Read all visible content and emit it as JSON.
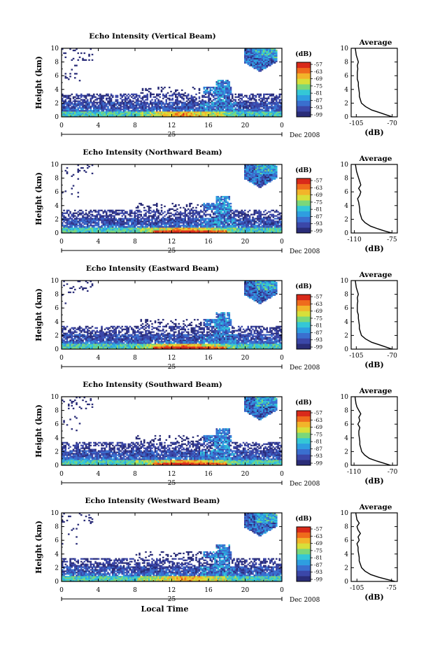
{
  "chart_data": [
    {
      "type": "heatmap",
      "title": "Echo Intensity (Vertical Beam)",
      "ylabel": "Height (km)",
      "x_ticks": [
        "0",
        "4",
        "8",
        "12",
        "16",
        "20",
        "0"
      ],
      "xlim": [
        0,
        24
      ],
      "y_ticks": [
        "0",
        "2",
        "4",
        "6",
        "8",
        "10"
      ],
      "ylim": [
        0,
        10
      ],
      "day_label": "25",
      "date_label": "Dec 2008",
      "colorbar": {
        "unit": "(dB)",
        "ticks": [
          "-57",
          "-63",
          "-69",
          "-75",
          "-81",
          "-87",
          "-93",
          "-99"
        ]
      },
      "average": {
        "title": "Average",
        "xlabel": "(dB)",
        "x_ticks": [
          "-105",
          "-70"
        ],
        "xlim": [
          -110,
          -65
        ],
        "y_ticks": [
          "0",
          "2",
          "4",
          "6",
          "8",
          "10"
        ],
        "heights": [
          0,
          0.3,
          0.6,
          1,
          1.5,
          2,
          2.5,
          3,
          3.5,
          4,
          4.5,
          5,
          5.5,
          6,
          6.5,
          7,
          7.5,
          8,
          8.5,
          9,
          9.5,
          10
        ],
        "values": [
          -70,
          -76,
          -82,
          -90,
          -96,
          -100,
          -101,
          -102,
          -102,
          -102.5,
          -103,
          -103,
          -104,
          -104,
          -104,
          -103.5,
          -104,
          -103,
          -104,
          -105,
          -105.5,
          -106
        ]
      }
    },
    {
      "type": "heatmap",
      "title": "Echo Intensity (Northward Beam)",
      "ylabel": "Height (km)",
      "x_ticks": [
        "0",
        "4",
        "8",
        "12",
        "16",
        "20",
        "0"
      ],
      "xlim": [
        0,
        24
      ],
      "y_ticks": [
        "0",
        "2",
        "4",
        "6",
        "8",
        "10"
      ],
      "ylim": [
        0,
        10
      ],
      "day_label": "25",
      "date_label": "Dec 2008",
      "colorbar": {
        "unit": "(dB)",
        "ticks": [
          "-57",
          "-63",
          "-69",
          "-75",
          "-81",
          "-87",
          "-93",
          "-99"
        ]
      },
      "average": {
        "title": "Average",
        "xlabel": "(dB)",
        "x_ticks": [
          "-110",
          "-75"
        ],
        "xlim": [
          -113,
          -70
        ],
        "y_ticks": [
          "0",
          "2",
          "4",
          "6",
          "8",
          "10"
        ],
        "heights": [
          0,
          0.3,
          0.6,
          1,
          1.5,
          2,
          2.5,
          3,
          3.5,
          4,
          4.5,
          5,
          5.5,
          6,
          6.5,
          7,
          7.5,
          8,
          8.5,
          9,
          9.5,
          10
        ],
        "values": [
          -75,
          -82,
          -88,
          -95,
          -100,
          -103,
          -104,
          -105,
          -105,
          -105.5,
          -106,
          -107,
          -105,
          -104,
          -106,
          -104,
          -105,
          -106,
          -107,
          -108,
          -108.5,
          -109
        ]
      }
    },
    {
      "type": "heatmap",
      "title": "Echo Intensity (Eastward Beam)",
      "ylabel": "Height (km)",
      "x_ticks": [
        "0",
        "4",
        "8",
        "12",
        "16",
        "20",
        "0"
      ],
      "xlim": [
        0,
        24
      ],
      "y_ticks": [
        "0",
        "2",
        "4",
        "6",
        "8",
        "10"
      ],
      "ylim": [
        0,
        10
      ],
      "day_label": "25",
      "date_label": "Dec 2008",
      "colorbar": {
        "unit": "(dB)",
        "ticks": [
          "-57",
          "-63",
          "-69",
          "-75",
          "-81",
          "-87",
          "-93",
          "-99"
        ]
      },
      "average": {
        "title": "Average",
        "xlabel": "(dB)",
        "x_ticks": [
          "-105",
          "-70"
        ],
        "xlim": [
          -110,
          -65
        ],
        "y_ticks": [
          "0",
          "2",
          "4",
          "6",
          "8",
          "10"
        ],
        "heights": [
          0,
          0.3,
          0.6,
          1,
          1.5,
          2,
          2.5,
          3,
          3.5,
          4,
          4.5,
          5,
          5.5,
          6,
          6.5,
          7,
          7.5,
          8,
          8.5,
          9,
          9.5,
          10
        ],
        "values": [
          -70,
          -76,
          -82,
          -90,
          -96,
          -100,
          -101,
          -102,
          -102,
          -102.5,
          -103,
          -103,
          -104,
          -104,
          -104,
          -103.5,
          -104,
          -103,
          -104,
          -105,
          -105.5,
          -106
        ]
      }
    },
    {
      "type": "heatmap",
      "title": "Echo Intensity (Southward Beam)",
      "ylabel": "Height (km)",
      "x_ticks": [
        "0",
        "4",
        "8",
        "12",
        "16",
        "20",
        "0"
      ],
      "xlim": [
        0,
        24
      ],
      "y_ticks": [
        "0",
        "2",
        "4",
        "6",
        "8",
        "10"
      ],
      "ylim": [
        0,
        10
      ],
      "day_label": "25",
      "date_label": "Dec 2008",
      "colorbar": {
        "unit": "(dB)",
        "ticks": [
          "-57",
          "-63",
          "-69",
          "-75",
          "-81",
          "-87",
          "-93",
          "-99"
        ]
      },
      "average": {
        "title": "Average",
        "xlabel": "(dB)",
        "x_ticks": [
          "-110",
          "-70"
        ],
        "xlim": [
          -113,
          -65
        ],
        "y_ticks": [
          "0",
          "2",
          "4",
          "6",
          "8",
          "10"
        ],
        "heights": [
          0,
          0.3,
          0.6,
          1,
          1.5,
          2,
          2.5,
          3,
          3.5,
          4,
          4.5,
          5,
          5.5,
          6,
          6.5,
          7,
          7.5,
          8,
          8.5,
          9,
          9.5,
          10
        ],
        "values": [
          -72,
          -79,
          -86,
          -94,
          -99,
          -102,
          -103,
          -104,
          -104,
          -104.5,
          -105,
          -105,
          -104,
          -106,
          -104,
          -105,
          -103,
          -105,
          -107,
          -108,
          -108.5,
          -109
        ]
      }
    },
    {
      "type": "heatmap",
      "title": "Echo Intensity (Westward Beam)",
      "ylabel": "Height (km)",
      "x_ticks": [
        "0",
        "4",
        "8",
        "12",
        "16",
        "20",
        "0"
      ],
      "xlim": [
        0,
        24
      ],
      "y_ticks": [
        "0",
        "2",
        "4",
        "6",
        "8",
        "10"
      ],
      "ylim": [
        0,
        10
      ],
      "day_label": "25",
      "date_label": "Dec 2008",
      "xlabel": "Local Time",
      "colorbar": {
        "unit": "(dB)",
        "ticks": [
          "-57",
          "-63",
          "-69",
          "-75",
          "-81",
          "-87",
          "-93",
          "-99"
        ]
      },
      "average": {
        "title": "Average",
        "xlabel": "(dB)",
        "x_ticks": [
          "-105",
          "-75"
        ],
        "xlim": [
          -110,
          -70
        ],
        "y_ticks": [
          "0",
          "2",
          "4",
          "6",
          "8",
          "10"
        ],
        "heights": [
          0,
          0.3,
          0.6,
          1,
          1.5,
          2,
          2.5,
          3,
          3.5,
          4,
          4.5,
          5,
          5.5,
          6,
          6.5,
          7,
          7.5,
          8,
          8.5,
          9,
          9.5,
          10
        ],
        "values": [
          -72,
          -79,
          -86,
          -93,
          -98,
          -101,
          -102,
          -103,
          -103,
          -103.5,
          -104,
          -104,
          -105,
          -103,
          -104,
          -102,
          -104,
          -105,
          -103,
          -105,
          -105.5,
          -106
        ]
      }
    }
  ],
  "colors": {
    "colormap": [
      "#2a2d78",
      "#3b47a8",
      "#3a6fcf",
      "#2e9ee0",
      "#34c7d6",
      "#7ad77a",
      "#d7df3a",
      "#f2b42a",
      "#ef6b1c",
      "#d92a1a"
    ],
    "line": "#000000"
  }
}
